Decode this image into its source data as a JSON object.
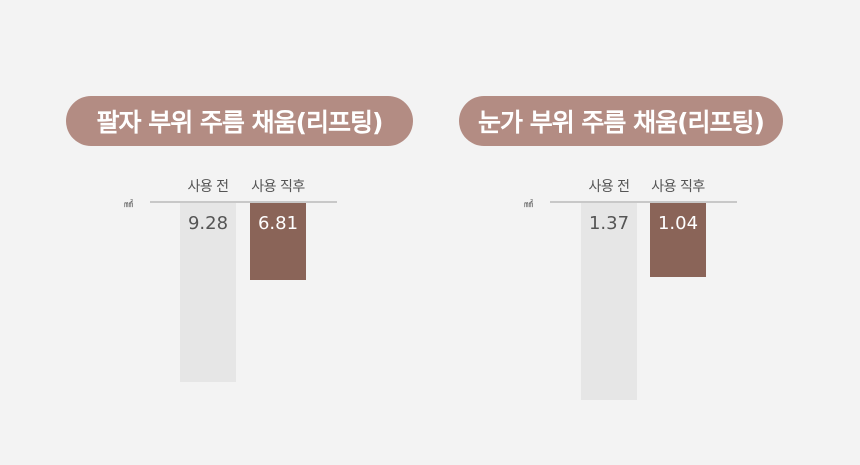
{
  "chart_data": [
    {
      "type": "bar",
      "title": "팔자 부위 주름 채움(리프팅)",
      "unit": "㎟",
      "categories": [
        "사용 전",
        "사용 직후"
      ],
      "values": [
        9.28,
        6.81
      ],
      "colors": [
        "#e6e6e6",
        "#8a6458"
      ]
    },
    {
      "type": "bar",
      "title": "눈가 부위 주름 채움(리프팅)",
      "unit": "㎟",
      "categories": [
        "사용 전",
        "사용 직후"
      ],
      "values": [
        1.37,
        1.04
      ],
      "colors": [
        "#e6e6e6",
        "#8a6458"
      ]
    }
  ],
  "labels": {
    "v0": [
      "9.28",
      "6.81"
    ],
    "v1": [
      "1.37",
      "1.04"
    ]
  }
}
